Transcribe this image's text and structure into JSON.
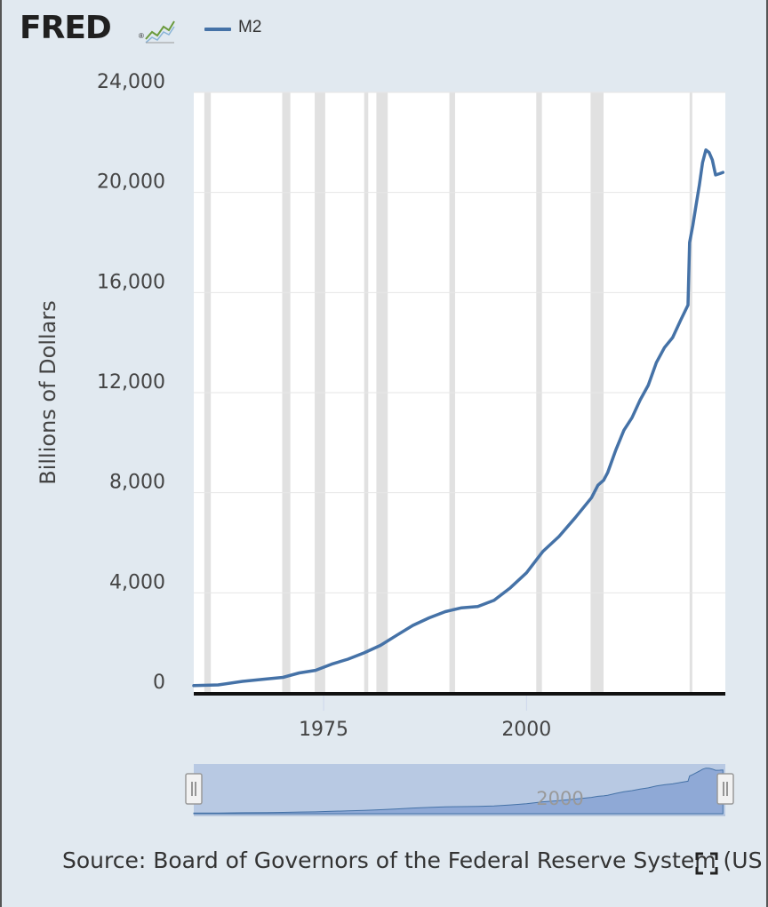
{
  "header": {
    "logo_text": "FRED",
    "logo_mark": "®",
    "logo_icon": "trend-chart-icon"
  },
  "legend": {
    "label": "M2",
    "color": "#4572a7"
  },
  "source": {
    "text": "Source: Board of Governors of the Federal Reserve System (US"
  },
  "icons": {
    "fullscreen": "fullscreen-icon"
  },
  "navigator": {
    "label": "2000"
  },
  "chart_data": {
    "type": "line",
    "title": "",
    "xlabel": "",
    "ylabel": "Billions of Dollars",
    "ylim": [
      0,
      24000
    ],
    "xlim": [
      1959,
      2024.5
    ],
    "yticks": [
      {
        "value": 0,
        "label": "0"
      },
      {
        "value": 4000,
        "label": "4,000"
      },
      {
        "value": 8000,
        "label": "8,000"
      },
      {
        "value": 12000,
        "label": "12,000"
      },
      {
        "value": 16000,
        "label": "16,000"
      },
      {
        "value": 20000,
        "label": "20,000"
      },
      {
        "value": 24000,
        "label": "24,000"
      }
    ],
    "xticks": [
      {
        "value": 1975,
        "label": "1975"
      },
      {
        "value": 2000,
        "label": "2000"
      }
    ],
    "grid": true,
    "legend_position": "top",
    "recessions": [
      [
        1960.3,
        1961.1
      ],
      [
        1969.9,
        1970.9
      ],
      [
        1973.9,
        1975.2
      ],
      [
        1980.0,
        1980.5
      ],
      [
        1981.5,
        1982.9
      ],
      [
        1990.5,
        1991.2
      ],
      [
        2001.2,
        2001.9
      ],
      [
        2007.9,
        2009.5
      ],
      [
        2020.1,
        2020.3
      ]
    ],
    "series": [
      {
        "name": "M2",
        "color": "#4572a7",
        "x": [
          1959,
          1962,
          1965,
          1968,
          1970,
          1972,
          1974,
          1976,
          1978,
          1980,
          1982,
          1984,
          1986,
          1988,
          1990,
          1992,
          1994,
          1996,
          1998,
          2000,
          2002,
          2004,
          2006,
          2008,
          2008.8,
          2009.5,
          2010,
          2011,
          2012,
          2013,
          2014,
          2015,
          2016,
          2017,
          2018,
          2019,
          2019.9,
          2020.1,
          2020.5,
          2020.9,
          2021.3,
          2021.7,
          2022.1,
          2022.5,
          2022.9,
          2023.3,
          2023.8,
          2024.2
        ],
        "y": [
          290,
          320,
          460,
          560,
          620,
          800,
          900,
          1150,
          1350,
          1600,
          1900,
          2300,
          2700,
          3000,
          3250,
          3400,
          3450,
          3700,
          4200,
          4800,
          5650,
          6250,
          7000,
          7800,
          8300,
          8500,
          8800,
          9700,
          10500,
          11000,
          11700,
          12300,
          13200,
          13800,
          14200,
          14900,
          15500,
          18000,
          18700,
          19500,
          20300,
          21200,
          21700,
          21600,
          21300,
          20700,
          20750,
          20800
        ]
      }
    ]
  }
}
